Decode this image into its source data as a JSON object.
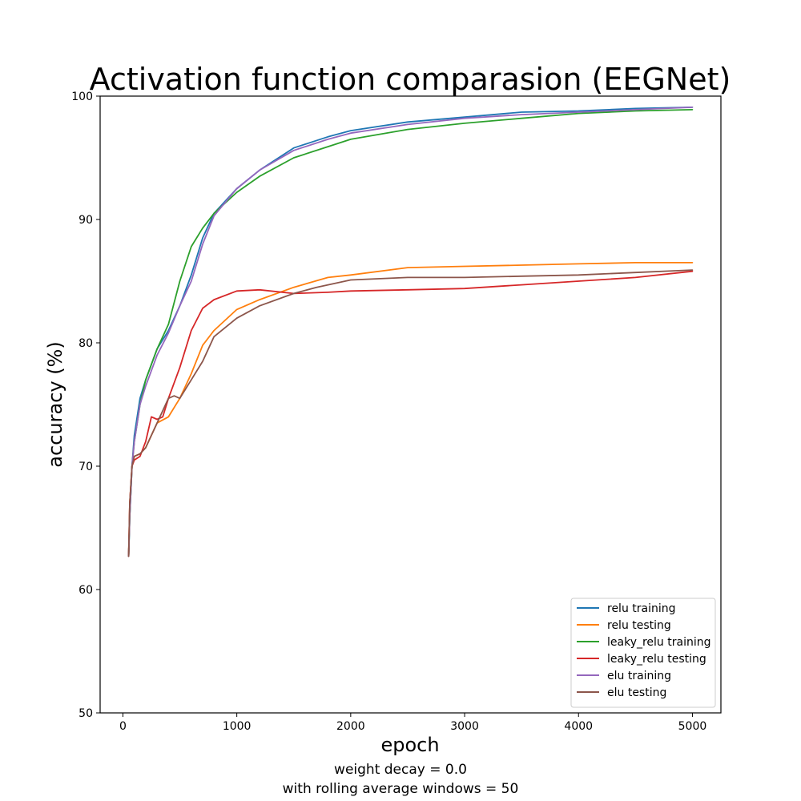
{
  "chart_data": {
    "type": "line",
    "title": "Activation function comparasion (EEGNet)",
    "xlabel": "epoch",
    "ylabel": "accuracy (%)",
    "xlim": [
      -200,
      5250
    ],
    "ylim": [
      50,
      100
    ],
    "xticks": [
      0,
      1000,
      2000,
      3000,
      4000,
      5000
    ],
    "yticks": [
      50,
      60,
      70,
      80,
      90,
      100
    ],
    "grid": false,
    "legend_position": "lower-right",
    "captions": [
      "weight decay = 0.0",
      "with rolling average windows = 50"
    ],
    "series": [
      {
        "name": "relu training",
        "color": "#1f77b4",
        "x": [
          50,
          60,
          80,
          100,
          150,
          200,
          300,
          400,
          500,
          600,
          700,
          800,
          1000,
          1200,
          1500,
          1800,
          2000,
          2500,
          3000,
          3500,
          4000,
          4500,
          5000
        ],
        "y": [
          62.7,
          66,
          70,
          72.5,
          75.5,
          77,
          79.5,
          81,
          83,
          85.5,
          88.5,
          90.5,
          92.5,
          94,
          95.8,
          96.7,
          97.2,
          97.9,
          98.3,
          98.7,
          98.8,
          99,
          99.1
        ]
      },
      {
        "name": "relu testing",
        "color": "#ff7f0e",
        "x": [
          50,
          60,
          80,
          100,
          150,
          200,
          300,
          400,
          500,
          600,
          700,
          800,
          1000,
          1200,
          1500,
          1800,
          2000,
          2500,
          3000,
          3500,
          4000,
          4500,
          5000
        ],
        "y": [
          62.7,
          67,
          70,
          70.8,
          71,
          71.5,
          73.5,
          74,
          75.5,
          77.5,
          79.8,
          81,
          82.7,
          83.5,
          84.5,
          85.3,
          85.5,
          86.1,
          86.2,
          86.3,
          86.4,
          86.5,
          86.5
        ]
      },
      {
        "name": "leaky_relu training",
        "color": "#2ca02c",
        "x": [
          50,
          60,
          80,
          100,
          150,
          200,
          300,
          400,
          500,
          600,
          700,
          800,
          1000,
          1200,
          1500,
          1800,
          2000,
          2500,
          3000,
          3500,
          4000,
          4500,
          5000
        ],
        "y": [
          62.7,
          66,
          70,
          72,
          75,
          77,
          79.5,
          81.5,
          85,
          87.8,
          89.3,
          90.5,
          92.2,
          93.5,
          95,
          95.9,
          96.5,
          97.3,
          97.8,
          98.2,
          98.6,
          98.8,
          98.9
        ]
      },
      {
        "name": "leaky_relu testing",
        "color": "#d62728",
        "x": [
          50,
          60,
          80,
          100,
          150,
          200,
          250,
          300,
          350,
          400,
          500,
          600,
          700,
          800,
          1000,
          1200,
          1500,
          1800,
          2000,
          2500,
          3000,
          3500,
          4000,
          4500,
          5000
        ],
        "y": [
          62.7,
          67,
          70,
          70.5,
          70.8,
          72,
          74,
          73.8,
          74,
          75.5,
          78,
          81,
          82.8,
          83.5,
          84.2,
          84.3,
          84,
          84.1,
          84.2,
          84.3,
          84.4,
          84.7,
          85,
          85.3,
          85.8
        ]
      },
      {
        "name": "elu training",
        "color": "#9467bd",
        "x": [
          50,
          60,
          80,
          100,
          150,
          200,
          300,
          400,
          500,
          600,
          700,
          800,
          1000,
          1200,
          1500,
          1800,
          2000,
          2500,
          3000,
          3500,
          4000,
          4500,
          5000
        ],
        "y": [
          62.7,
          66,
          70,
          72,
          75,
          76.5,
          79,
          80.8,
          83,
          85,
          88,
          90.3,
          92.5,
          94,
          95.6,
          96.5,
          97,
          97.7,
          98.2,
          98.5,
          98.7,
          98.9,
          99.1
        ]
      },
      {
        "name": "elu testing",
        "color": "#8c564b",
        "x": [
          50,
          60,
          80,
          100,
          150,
          200,
          300,
          400,
          450,
          500,
          600,
          700,
          800,
          1000,
          1200,
          1500,
          1700,
          2000,
          2500,
          3000,
          3500,
          4000,
          4500,
          5000
        ],
        "y": [
          62.7,
          67,
          70,
          70.8,
          71,
          71.5,
          73.5,
          75.5,
          75.7,
          75.5,
          77,
          78.5,
          80.5,
          82,
          83,
          84,
          84.5,
          85.1,
          85.3,
          85.3,
          85.4,
          85.5,
          85.7,
          85.9
        ]
      }
    ]
  }
}
